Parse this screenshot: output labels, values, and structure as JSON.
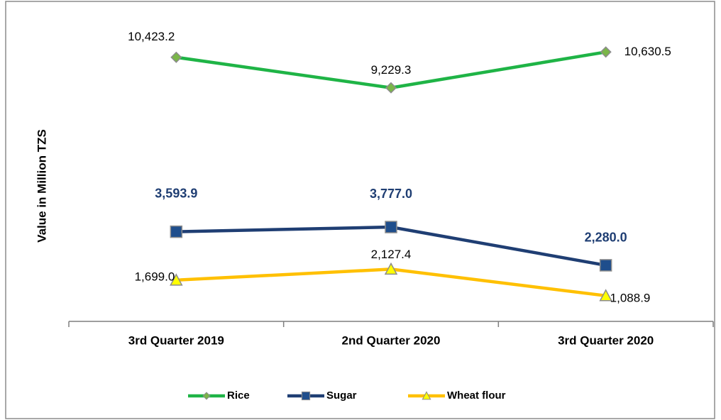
{
  "chart_data": {
    "type": "line",
    "y_label": "Value in Million TZS",
    "categories": [
      "3rd Quarter 2019",
      "2nd Quarter 2020",
      "3rd Quarter 2020"
    ],
    "ylim": [
      0,
      12000
    ],
    "series": [
      {
        "name": "Rice",
        "color": "#1fb446",
        "marker_color": "#7ab648",
        "marker": "diamond",
        "values": [
          10423.2,
          9229.3,
          10630.5
        ],
        "value_labels": [
          "10,423.2",
          "9,229.3",
          "10,630.5"
        ]
      },
      {
        "name": "Sugar",
        "color": "#1f3e73",
        "marker_color": "#1f4e8c",
        "marker": "square",
        "values": [
          3593.9,
          3777.0,
          2280.0
        ],
        "value_labels": [
          "3,593.9",
          "3,777.0",
          "2,280.0"
        ]
      },
      {
        "name": "Wheat flour",
        "color": "#ffc000",
        "marker_color": "#ffff00",
        "marker": "triangle",
        "values": [
          1699.0,
          2127.4,
          1088.9
        ],
        "value_labels": [
          "1,699.0",
          "2,127.4",
          "1,088.9"
        ]
      }
    ]
  }
}
